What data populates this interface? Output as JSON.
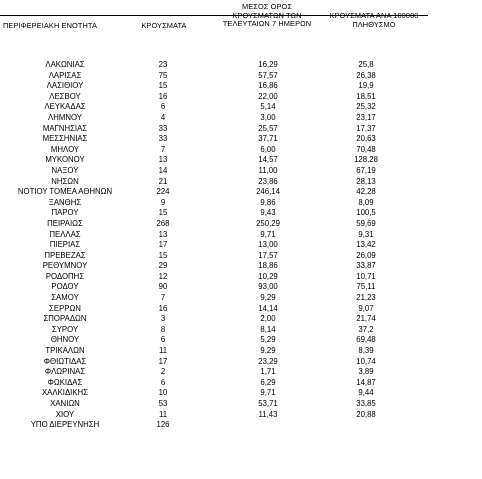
{
  "table": {
    "headers": {
      "region": "ΠΕΡΙΦΕΡΕΙΑΚΗ ΕΝΟΤΗΤΑ",
      "cases": "ΚΡΟΥΣΜΑΤΑ",
      "avg_line1": "ΜΕΣΟΣ ΟΡΟΣ",
      "avg_line2": "ΚΡΟΥΣΜΑΤΩΝ ΤΩΝ",
      "avg_line3": "ΤΕΛΕΥΤΑΙΩΝ 7 ΗΜΕΡΩΝ",
      "per_line1": "ΚΡΟΥΣΜΑΤΑ ΑΝΑ 100000",
      "per_line2": "ΠΛΗΘΥΣΜΟ"
    },
    "rows": [
      {
        "region": "ΛΑΚΩΝΙΑΣ",
        "cases": "23",
        "avg": "16,29",
        "per": "25,8"
      },
      {
        "region": "ΛΑΡΙΣΑΣ",
        "cases": "75",
        "avg": "57,57",
        "per": "26,38"
      },
      {
        "region": "ΛΑΣΙΘΙΟΥ",
        "cases": "15",
        "avg": "16,86",
        "per": "19,9"
      },
      {
        "region": "ΛΕΣΒΟΥ",
        "cases": "16",
        "avg": "22,00",
        "per": "18,51"
      },
      {
        "region": "ΛΕΥΚΑΔΑΣ",
        "cases": "6",
        "avg": "5,14",
        "per": "25,32"
      },
      {
        "region": "ΛΗΜΝΟΥ",
        "cases": "4",
        "avg": "3,00",
        "per": "23,17"
      },
      {
        "region": "ΜΑΓΝΗΣΙΑΣ",
        "cases": "33",
        "avg": "25,57",
        "per": "17,37"
      },
      {
        "region": "ΜΕΣΣΗΝΙΑΣ",
        "cases": "33",
        "avg": "37,71",
        "per": "20,63"
      },
      {
        "region": "ΜΗΛΟΥ",
        "cases": "7",
        "avg": "6,00",
        "per": "70,48"
      },
      {
        "region": "ΜΥΚΟΝΟΥ",
        "cases": "13",
        "avg": "14,57",
        "per": "128,28"
      },
      {
        "region": "ΝΑΞΟΥ",
        "cases": "14",
        "avg": "11,00",
        "per": "67,19"
      },
      {
        "region": "ΝΗΣΩΝ",
        "cases": "21",
        "avg": "23,86",
        "per": "28,13"
      },
      {
        "region": "ΝΟΤΙΟΥ ΤΟΜΕΑ ΑΘΗΝΩΝ",
        "cases": "224",
        "avg": "246,14",
        "per": "42,28"
      },
      {
        "region": "ΞΑΝΘΗΣ",
        "cases": "9",
        "avg": "9,86",
        "per": "8,09"
      },
      {
        "region": "ΠΑΡΟΥ",
        "cases": "15",
        "avg": "9,43",
        "per": "100,5"
      },
      {
        "region": "ΠΕΙΡΑΙΩΣ",
        "cases": "268",
        "avg": "250,29",
        "per": "59,69"
      },
      {
        "region": "ΠΕΛΛΑΣ",
        "cases": "13",
        "avg": "9,71",
        "per": "9,31"
      },
      {
        "region": "ΠΙΕΡΙΑΣ",
        "cases": "17",
        "avg": "13,00",
        "per": "13,42"
      },
      {
        "region": "ΠΡΕΒΕΖΑΣ",
        "cases": "15",
        "avg": "17,57",
        "per": "26,09"
      },
      {
        "region": "ΡΕΘΥΜΝΟΥ",
        "cases": "29",
        "avg": "18,86",
        "per": "33,87"
      },
      {
        "region": "ΡΟΔΟΠΗΣ",
        "cases": "12",
        "avg": "10,29",
        "per": "10,71"
      },
      {
        "region": "ΡΟΔΟΥ",
        "cases": "90",
        "avg": "93,00",
        "per": "75,11"
      },
      {
        "region": "ΣΑΜΟΥ",
        "cases": "7",
        "avg": "9,29",
        "per": "21,23"
      },
      {
        "region": "ΣΕΡΡΩΝ",
        "cases": "16",
        "avg": "14,14",
        "per": "9,07"
      },
      {
        "region": "ΣΠΟΡΑΔΩΝ",
        "cases": "3",
        "avg": "2,00",
        "per": "21,74"
      },
      {
        "region": "ΣΥΡΟΥ",
        "cases": "8",
        "avg": "8,14",
        "per": "37,2"
      },
      {
        "region": "ΘΗΝΟΥ",
        "cases": "6",
        "avg": "5,29",
        "per": "69,48"
      },
      {
        "region": "ΤΡΙΚΑΛΩΝ",
        "cases": "11",
        "avg": "9,29",
        "per": "8,39"
      },
      {
        "region": "ΦΘΙΩΤΙΔΑΣ",
        "cases": "17",
        "avg": "23,29",
        "per": "10,74"
      },
      {
        "region": "ΦΛΩΡΙΝΑΣ",
        "cases": "2",
        "avg": "1,71",
        "per": "3,89"
      },
      {
        "region": "ΦΩΚΙΔΑΣ",
        "cases": "6",
        "avg": "6,29",
        "per": "14,87"
      },
      {
        "region": "ΧΑΛΚΙΔΙΚΗΣ",
        "cases": "10",
        "avg": "9,71",
        "per": "9,44"
      },
      {
        "region": "ΧΑΝΙΩΝ",
        "cases": "53",
        "avg": "53,71",
        "per": "33,85"
      },
      {
        "region": "ΧΙΟΥ",
        "cases": "11",
        "avg": "11,43",
        "per": "20,88"
      },
      {
        "region": "ΥΠΟ ΔΙΕΡΕΥΝΗΣΗ",
        "cases": "126",
        "avg": "",
        "per": ""
      }
    ]
  }
}
